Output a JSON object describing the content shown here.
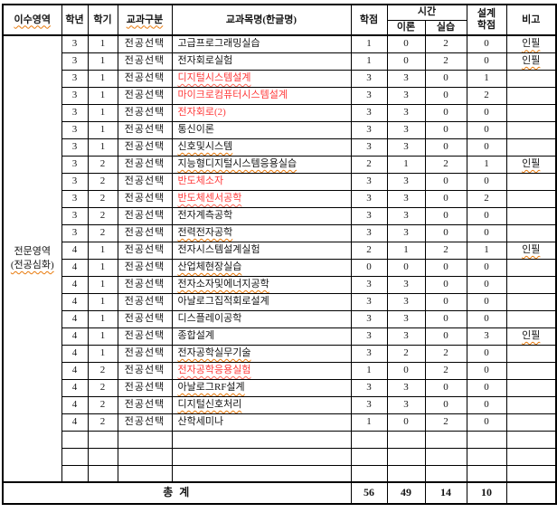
{
  "header": {
    "area": "이수영역",
    "year": "학년",
    "semester": "학기",
    "category": "교과구분",
    "course": "교과목명(한글명)",
    "credits": "학점",
    "hours": "시간",
    "theory": "이론",
    "practice": "실습",
    "design_credits": "설계\n학점",
    "note": "비고"
  },
  "area": {
    "line1": "전문영역",
    "line2": "(전공심화)"
  },
  "colors": {
    "red_course": "#ff3b3b",
    "squiggle_orange": "#e8790b",
    "border": "#000000",
    "background": "#ffffff"
  },
  "rows": [
    {
      "year": "3",
      "semester": "1",
      "category": "전공선택",
      "course": "고급프로그래밍실습",
      "credits": "1",
      "theory": "0",
      "practice": "2",
      "design": "0",
      "note": "인필",
      "red": false,
      "squiggle": false
    },
    {
      "year": "3",
      "semester": "1",
      "category": "전공선택",
      "course": "전자회로실험",
      "credits": "1",
      "theory": "0",
      "practice": "2",
      "design": "0",
      "note": "인필",
      "red": false,
      "squiggle": false
    },
    {
      "year": "3",
      "semester": "1",
      "category": "전공선택",
      "course": "디지털시스템설계",
      "credits": "3",
      "theory": "3",
      "practice": "0",
      "design": "1",
      "note": "",
      "red": true,
      "squiggle": true
    },
    {
      "year": "3",
      "semester": "1",
      "category": "전공선택",
      "course": "마이크로컴퓨터시스템설계",
      "credits": "3",
      "theory": "3",
      "practice": "0",
      "design": "2",
      "note": "",
      "red": true,
      "squiggle": false
    },
    {
      "year": "3",
      "semester": "1",
      "category": "전공선택",
      "course": "전자회로(2)",
      "credits": "3",
      "theory": "3",
      "practice": "0",
      "design": "0",
      "note": "",
      "red": true,
      "squiggle": false
    },
    {
      "year": "3",
      "semester": "1",
      "category": "전공선택",
      "course": "통신이론",
      "credits": "3",
      "theory": "3",
      "practice": "0",
      "design": "0",
      "note": "",
      "red": false,
      "squiggle": false
    },
    {
      "year": "3",
      "semester": "1",
      "category": "전공선택",
      "course": "신호및시스템",
      "credits": "3",
      "theory": "3",
      "practice": "0",
      "design": "0",
      "note": "",
      "red": false,
      "squiggle": true
    },
    {
      "year": "3",
      "semester": "2",
      "category": "전공선택",
      "course": "지능형디지털시스템응용실습",
      "credits": "2",
      "theory": "1",
      "practice": "2",
      "design": "1",
      "note": "인필",
      "red": false,
      "squiggle": true
    },
    {
      "year": "3",
      "semester": "2",
      "category": "전공선택",
      "course": "반도체소자",
      "credits": "3",
      "theory": "3",
      "practice": "0",
      "design": "0",
      "note": "",
      "red": true,
      "squiggle": false
    },
    {
      "year": "3",
      "semester": "2",
      "category": "전공선택",
      "course": "반도체센서공학",
      "credits": "3",
      "theory": "3",
      "practice": "0",
      "design": "2",
      "note": "",
      "red": true,
      "squiggle": true
    },
    {
      "year": "3",
      "semester": "2",
      "category": "전공선택",
      "course": "전자계측공학",
      "credits": "3",
      "theory": "3",
      "practice": "0",
      "design": "0",
      "note": "",
      "red": false,
      "squiggle": false
    },
    {
      "year": "3",
      "semester": "2",
      "category": "전공선택",
      "course": "전력전자공학",
      "credits": "3",
      "theory": "3",
      "practice": "0",
      "design": "0",
      "note": "",
      "red": false,
      "squiggle": true
    },
    {
      "year": "4",
      "semester": "1",
      "category": "전공선택",
      "course": "전자시스템설계실험",
      "credits": "2",
      "theory": "1",
      "practice": "2",
      "design": "1",
      "note": "인필",
      "red": false,
      "squiggle": false
    },
    {
      "year": "4",
      "semester": "1",
      "category": "전공선택",
      "course": "산업체현장실습",
      "credits": "0",
      "theory": "0",
      "practice": "0",
      "design": "0",
      "note": "",
      "red": false,
      "squiggle": true
    },
    {
      "year": "4",
      "semester": "1",
      "category": "전공선택",
      "course": "전자소자및에너지공학",
      "credits": "3",
      "theory": "3",
      "practice": "0",
      "design": "0",
      "note": "",
      "red": false,
      "squiggle": true
    },
    {
      "year": "4",
      "semester": "1",
      "category": "전공선택",
      "course": "아날로그집적회로설계",
      "credits": "3",
      "theory": "3",
      "practice": "0",
      "design": "0",
      "note": "",
      "red": false,
      "squiggle": false
    },
    {
      "year": "4",
      "semester": "1",
      "category": "전공선택",
      "course": "디스플레이공학",
      "credits": "3",
      "theory": "3",
      "practice": "0",
      "design": "0",
      "note": "",
      "red": false,
      "squiggle": false
    },
    {
      "year": "4",
      "semester": "1",
      "category": "전공선택",
      "course": "종합설계",
      "credits": "3",
      "theory": "3",
      "practice": "0",
      "design": "3",
      "note": "인필",
      "red": false,
      "squiggle": false
    },
    {
      "year": "4",
      "semester": "1",
      "category": "전공선택",
      "course": "전자공학실무기술",
      "credits": "3",
      "theory": "2",
      "practice": "2",
      "design": "0",
      "note": "",
      "red": false,
      "squiggle": true
    },
    {
      "year": "4",
      "semester": "2",
      "category": "전공선택",
      "course": "전자공학응용실험",
      "credits": "1",
      "theory": "0",
      "practice": "2",
      "design": "0",
      "note": "",
      "red": true,
      "squiggle": true
    },
    {
      "year": "4",
      "semester": "2",
      "category": "전공선택",
      "course": "아날로그RF설계",
      "credits": "3",
      "theory": "3",
      "practice": "0",
      "design": "0",
      "note": "",
      "red": false,
      "squiggle": true
    },
    {
      "year": "4",
      "semester": "2",
      "category": "전공선택",
      "course": "디지털신호처리",
      "credits": "3",
      "theory": "3",
      "practice": "0",
      "design": "0",
      "note": "",
      "red": false,
      "squiggle": true
    },
    {
      "year": "4",
      "semester": "2",
      "category": "전공선택",
      "course": "산학세미나",
      "credits": "1",
      "theory": "0",
      "practice": "2",
      "design": "0",
      "note": "",
      "red": false,
      "squiggle": false
    }
  ],
  "empty_row_count": 3,
  "total": {
    "label": "총 계",
    "credits": "56",
    "theory": "49",
    "practice": "14",
    "design": "10",
    "note": ""
  }
}
